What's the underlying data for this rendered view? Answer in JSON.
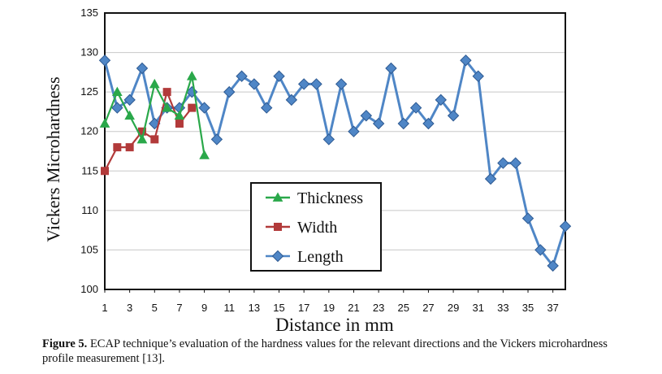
{
  "chart_data": {
    "type": "line",
    "title": "",
    "xlabel": "Distance in mm",
    "ylabel": "Vickers Microhardness",
    "xlim": [
      1,
      38
    ],
    "ylim": [
      100,
      135
    ],
    "x_ticks": [
      "1",
      "3",
      "5",
      "7",
      "9",
      "11",
      "13",
      "15",
      "17",
      "19",
      "21",
      "23",
      "25",
      "27",
      "29",
      "31",
      "33",
      "35",
      "37"
    ],
    "y_ticks": [
      "100",
      "105",
      "110",
      "115",
      "120",
      "125",
      "130",
      "135"
    ],
    "grid": true,
    "legend_position": "bottom-left-center",
    "series": [
      {
        "name": "Thickness",
        "color": "#2aa84a",
        "marker": "triangle",
        "x": [
          1,
          2,
          3,
          4,
          5,
          6,
          7,
          8,
          9
        ],
        "values": [
          121,
          125,
          122,
          119,
          126,
          123,
          122,
          127,
          117
        ]
      },
      {
        "name": "Width",
        "color": "#b23a3a",
        "marker": "square",
        "x": [
          1,
          2,
          3,
          4,
          5,
          6,
          7,
          8
        ],
        "values": [
          115,
          118,
          118,
          120,
          119,
          125,
          121,
          123
        ]
      },
      {
        "name": "Length",
        "color": "#4f86c6",
        "marker": "diamond",
        "x": [
          1,
          2,
          3,
          4,
          5,
          6,
          7,
          8,
          9,
          10,
          11,
          12,
          13,
          14,
          15,
          16,
          17,
          18,
          19,
          20,
          21,
          22,
          23,
          24,
          25,
          26,
          27,
          28,
          29,
          30,
          31,
          32,
          33,
          34,
          35,
          36,
          37,
          38
        ],
        "values": [
          129,
          123,
          124,
          128,
          121,
          123,
          123,
          125,
          123,
          119,
          125,
          127,
          126,
          123,
          127,
          124,
          126,
          126,
          119,
          126,
          120,
          122,
          121,
          128,
          121,
          123,
          121,
          124,
          122,
          129,
          127,
          114,
          116,
          116,
          109,
          105,
          103,
          108
        ]
      }
    ]
  },
  "caption": {
    "label": "Figure 5.",
    "text": "ECAP technique’s evaluation of the hardness values for the relevant directions and the Vickers microhardness profile measurement [13]."
  }
}
